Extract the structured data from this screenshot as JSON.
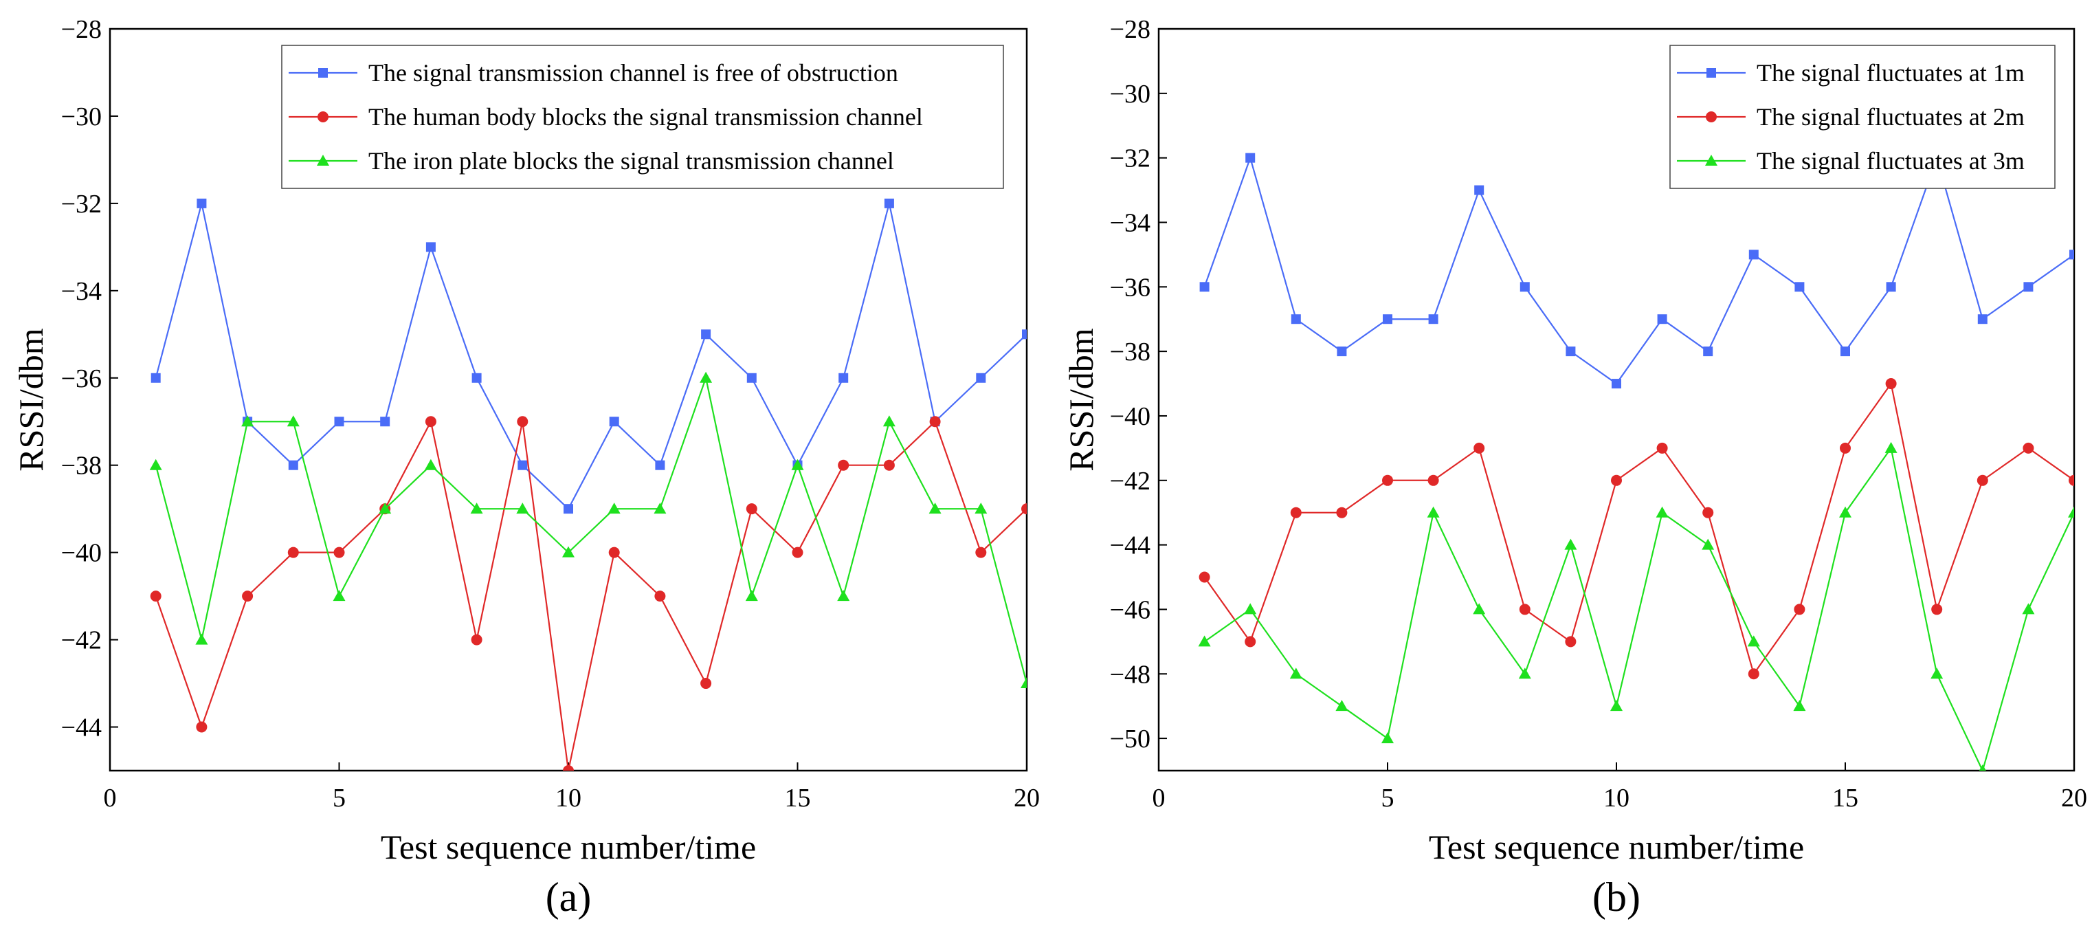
{
  "chart_data": [
    {
      "type": "line",
      "panel_label": "(a)",
      "xlabel": "Test sequence number/time",
      "ylabel": "RSSI/dbm",
      "xlim": [
        0,
        20
      ],
      "ylim": [
        -45,
        -28
      ],
      "xticks": [
        0,
        5,
        10,
        15,
        20
      ],
      "yticks": [
        -44,
        -42,
        -40,
        -38,
        -36,
        -34,
        -32,
        -30,
        -28
      ],
      "legend_position": "top-right",
      "x": [
        1,
        2,
        3,
        4,
        5,
        6,
        7,
        8,
        9,
        10,
        11,
        12,
        13,
        14,
        15,
        16,
        17,
        18,
        19,
        20
      ],
      "series": [
        {
          "name": "The signal transmission channel is free of obstruction",
          "color": "#4a6cf7",
          "marker": "square",
          "values": [
            -36,
            -32,
            -37,
            -38,
            -37,
            -37,
            -33,
            -36,
            -38,
            -39,
            -37,
            -38,
            -35,
            -36,
            -38,
            -36,
            -32,
            -37,
            -36,
            -35
          ]
        },
        {
          "name": "The human body blocks the signal transmission channel",
          "color": "#e02828",
          "marker": "circle",
          "values": [
            -41,
            -44,
            -41,
            -40,
            -40,
            -39,
            -37,
            -42,
            -37,
            -45,
            -40,
            -41,
            -43,
            -39,
            -40,
            -38,
            -38,
            -37,
            -40,
            -39
          ]
        },
        {
          "name": "The iron plate blocks the signal transmission channel",
          "color": "#1ee01e",
          "marker": "triangle",
          "values": [
            -38,
            -42,
            -37,
            -37,
            -41,
            -39,
            -38,
            -39,
            -39,
            -40,
            -39,
            -39,
            -36,
            -41,
            -38,
            -41,
            -37,
            -39,
            -39,
            -43
          ]
        }
      ]
    },
    {
      "type": "line",
      "panel_label": "(b)",
      "xlabel": "Test sequence number/time",
      "ylabel": "RSSI/dbm",
      "xlim": [
        0,
        20
      ],
      "ylim": [
        -51,
        -28
      ],
      "xticks": [
        0,
        5,
        10,
        15,
        20
      ],
      "yticks": [
        -50,
        -48,
        -46,
        -44,
        -42,
        -40,
        -38,
        -36,
        -34,
        -32,
        -30,
        -28
      ],
      "legend_position": "top-right",
      "x": [
        1,
        2,
        3,
        4,
        5,
        6,
        7,
        8,
        9,
        10,
        11,
        12,
        13,
        14,
        15,
        16,
        17,
        18,
        19,
        20
      ],
      "series": [
        {
          "name": "The signal fluctuates at 1m",
          "color": "#4a6cf7",
          "marker": "square",
          "values": [
            -36,
            -32,
            -37,
            -38,
            -37,
            -37,
            -33,
            -36,
            -38,
            -39,
            -37,
            -38,
            -35,
            -36,
            -38,
            -36,
            -32,
            -37,
            -36,
            -35
          ]
        },
        {
          "name": "The signal fluctuates at 2m",
          "color": "#e02828",
          "marker": "circle",
          "values": [
            -45,
            -47,
            -43,
            -43,
            -42,
            -42,
            -41,
            -46,
            -47,
            -42,
            -41,
            -43,
            -48,
            -46,
            -41,
            -39,
            -46,
            -42,
            -41,
            -42
          ]
        },
        {
          "name": "The signal fluctuates at 3m",
          "color": "#1ee01e",
          "marker": "triangle",
          "values": [
            -47,
            -46,
            -48,
            -49,
            -50,
            -43,
            -46,
            -48,
            -44,
            -49,
            -43,
            -44,
            -47,
            -49,
            -43,
            -41,
            -48,
            -51,
            -46,
            -43
          ]
        }
      ]
    }
  ]
}
